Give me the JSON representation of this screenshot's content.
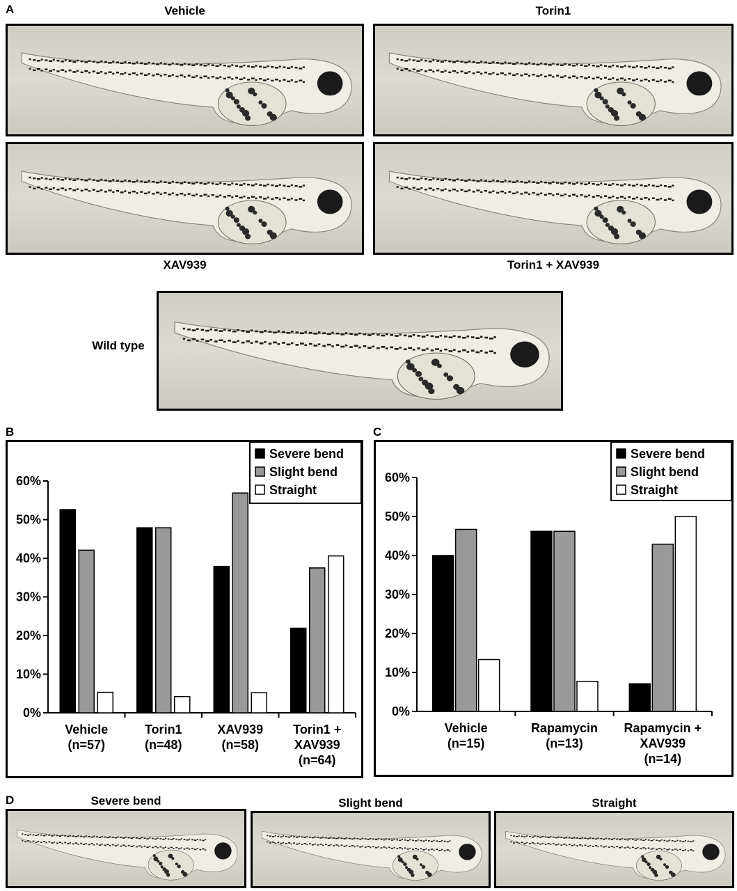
{
  "panels": {
    "a": {
      "letter": "A",
      "images": {
        "vehicle": "Vehicle",
        "torin1": "Torin1",
        "xav939": "XAV939",
        "torin1_xav939": "Torin1 + XAV939",
        "wild_type": "Wild type"
      }
    },
    "b": {
      "letter": "B"
    },
    "c": {
      "letter": "C"
    },
    "d": {
      "letter": "D",
      "images": {
        "severe": "Severe bend",
        "slight": "Slight bend",
        "straight": "Straight"
      }
    }
  },
  "colors": {
    "severe": "#000000",
    "slight": "#999999",
    "straight": "#ffffff"
  },
  "chart_data": [
    {
      "panel": "B",
      "type": "bar",
      "categories": [
        [
          "Vehicle",
          "(n=57)"
        ],
        [
          "Torin1",
          "(n=48)"
        ],
        [
          "XAV939",
          "(n=58)"
        ],
        [
          "Torin1 +",
          "XAV939",
          "(n=64)"
        ]
      ],
      "series": [
        {
          "name": "Severe bend",
          "values": [
            52.6,
            47.9,
            37.9,
            21.9
          ]
        },
        {
          "name": "Slight bend",
          "values": [
            42.1,
            47.9,
            56.9,
            37.5
          ]
        },
        {
          "name": "Straight",
          "values": [
            5.3,
            4.2,
            5.2,
            40.6
          ]
        }
      ],
      "yticks": [
        "0%",
        "10%",
        "20%",
        "30%",
        "40%",
        "50%",
        "60%"
      ],
      "ylim": [
        0,
        60
      ],
      "legend": "top-right",
      "grid": false
    },
    {
      "panel": "C",
      "type": "bar",
      "categories": [
        [
          "Vehicle",
          "(n=15)"
        ],
        [
          "Rapamycin",
          "(n=13)"
        ],
        [
          "Rapamycin +",
          "XAV939",
          "(n=14)"
        ]
      ],
      "series": [
        {
          "name": "Severe bend",
          "values": [
            40.0,
            46.2,
            7.1
          ]
        },
        {
          "name": "Slight bend",
          "values": [
            46.7,
            46.2,
            42.9
          ]
        },
        {
          "name": "Straight",
          "values": [
            13.3,
            7.7,
            50.0
          ]
        }
      ],
      "yticks": [
        "0%",
        "10%",
        "20%",
        "30%",
        "40%",
        "50%",
        "60%"
      ],
      "ylim": [
        0,
        60
      ],
      "legend": "top-right",
      "grid": false
    }
  ]
}
